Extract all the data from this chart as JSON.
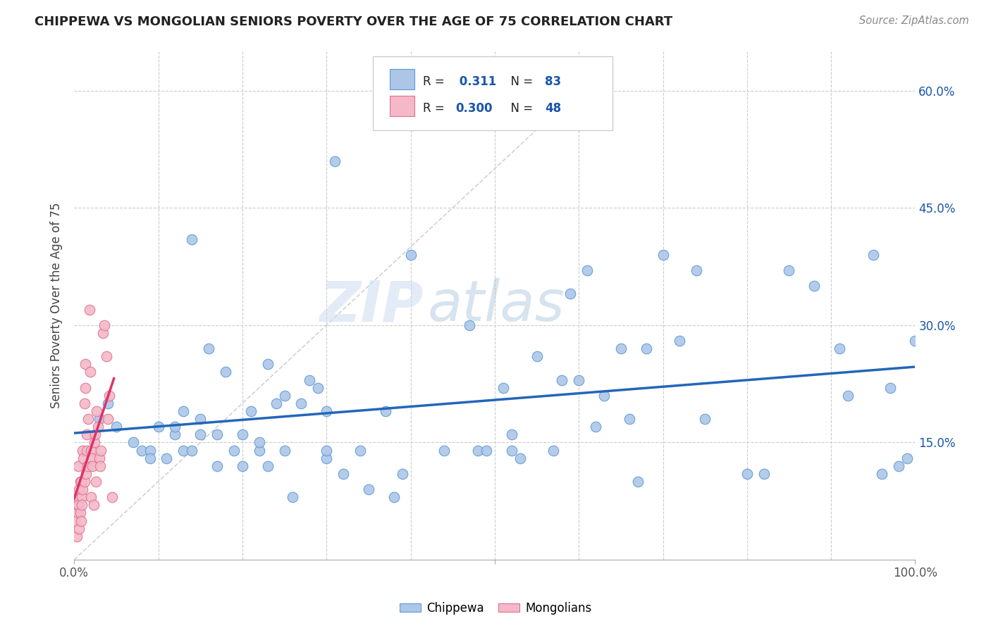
{
  "title": "CHIPPEWA VS MONGOLIAN SENIORS POVERTY OVER THE AGE OF 75 CORRELATION CHART",
  "source": "Source: ZipAtlas.com",
  "ylabel": "Seniors Poverty Over the Age of 75",
  "xlim": [
    0,
    1.0
  ],
  "ylim": [
    0,
    0.65
  ],
  "ytick_positions": [
    0.0,
    0.15,
    0.3,
    0.45,
    0.6
  ],
  "yticklabels_right": [
    "",
    "15.0%",
    "30.0%",
    "45.0%",
    "60.0%"
  ],
  "chippewa_color": "#adc6e8",
  "chippewa_edge": "#5b9bd5",
  "mongolian_color": "#f4b8c8",
  "mongolian_edge": "#e07090",
  "trendline_chippewa_color": "#2266bb",
  "trendline_mongolian_color": "#dd3366",
  "watermark_zip": "ZIP",
  "watermark_atlas": "atlas",
  "background_color": "#ffffff",
  "legend_text_color": "#1a55aa",
  "legend_label_color": "#333333",
  "chippewa_x": [
    0.03,
    0.04,
    0.05,
    0.07,
    0.08,
    0.09,
    0.09,
    0.1,
    0.11,
    0.12,
    0.12,
    0.13,
    0.13,
    0.14,
    0.14,
    0.15,
    0.15,
    0.16,
    0.17,
    0.17,
    0.18,
    0.19,
    0.2,
    0.2,
    0.21,
    0.22,
    0.22,
    0.23,
    0.23,
    0.24,
    0.25,
    0.25,
    0.26,
    0.27,
    0.28,
    0.29,
    0.3,
    0.3,
    0.3,
    0.31,
    0.32,
    0.34,
    0.35,
    0.37,
    0.38,
    0.39,
    0.4,
    0.44,
    0.47,
    0.48,
    0.49,
    0.51,
    0.52,
    0.52,
    0.53,
    0.55,
    0.57,
    0.58,
    0.59,
    0.6,
    0.61,
    0.62,
    0.63,
    0.65,
    0.66,
    0.67,
    0.68,
    0.7,
    0.72,
    0.74,
    0.75,
    0.8,
    0.82,
    0.85,
    0.88,
    0.91,
    0.92,
    0.95,
    0.96,
    0.97,
    0.98,
    0.99,
    1.0
  ],
  "chippewa_y": [
    0.18,
    0.2,
    0.17,
    0.15,
    0.14,
    0.14,
    0.13,
    0.17,
    0.13,
    0.16,
    0.17,
    0.19,
    0.14,
    0.41,
    0.14,
    0.18,
    0.16,
    0.27,
    0.16,
    0.12,
    0.24,
    0.14,
    0.16,
    0.12,
    0.19,
    0.14,
    0.15,
    0.12,
    0.25,
    0.2,
    0.14,
    0.21,
    0.08,
    0.2,
    0.23,
    0.22,
    0.13,
    0.14,
    0.19,
    0.51,
    0.11,
    0.14,
    0.09,
    0.19,
    0.08,
    0.11,
    0.39,
    0.14,
    0.3,
    0.14,
    0.14,
    0.22,
    0.16,
    0.14,
    0.13,
    0.26,
    0.14,
    0.23,
    0.34,
    0.23,
    0.37,
    0.17,
    0.21,
    0.27,
    0.18,
    0.1,
    0.27,
    0.39,
    0.28,
    0.37,
    0.18,
    0.11,
    0.11,
    0.37,
    0.35,
    0.27,
    0.21,
    0.39,
    0.11,
    0.22,
    0.12,
    0.13,
    0.28
  ],
  "mongolian_x": [
    0.001,
    0.002,
    0.003,
    0.004,
    0.004,
    0.005,
    0.005,
    0.006,
    0.006,
    0.007,
    0.007,
    0.008,
    0.008,
    0.009,
    0.009,
    0.01,
    0.01,
    0.011,
    0.012,
    0.012,
    0.013,
    0.013,
    0.014,
    0.015,
    0.015,
    0.016,
    0.017,
    0.018,
    0.019,
    0.02,
    0.02,
    0.021,
    0.022,
    0.023,
    0.024,
    0.025,
    0.026,
    0.027,
    0.028,
    0.03,
    0.031,
    0.032,
    0.034,
    0.036,
    0.038,
    0.04,
    0.042,
    0.045
  ],
  "mongolian_y": [
    0.05,
    0.07,
    0.03,
    0.08,
    0.06,
    0.12,
    0.07,
    0.04,
    0.09,
    0.1,
    0.06,
    0.05,
    0.1,
    0.08,
    0.07,
    0.14,
    0.09,
    0.13,
    0.1,
    0.2,
    0.25,
    0.22,
    0.11,
    0.16,
    0.14,
    0.12,
    0.18,
    0.32,
    0.24,
    0.14,
    0.08,
    0.13,
    0.12,
    0.07,
    0.15,
    0.16,
    0.1,
    0.19,
    0.17,
    0.13,
    0.12,
    0.14,
    0.29,
    0.3,
    0.26,
    0.18,
    0.21,
    0.08
  ]
}
